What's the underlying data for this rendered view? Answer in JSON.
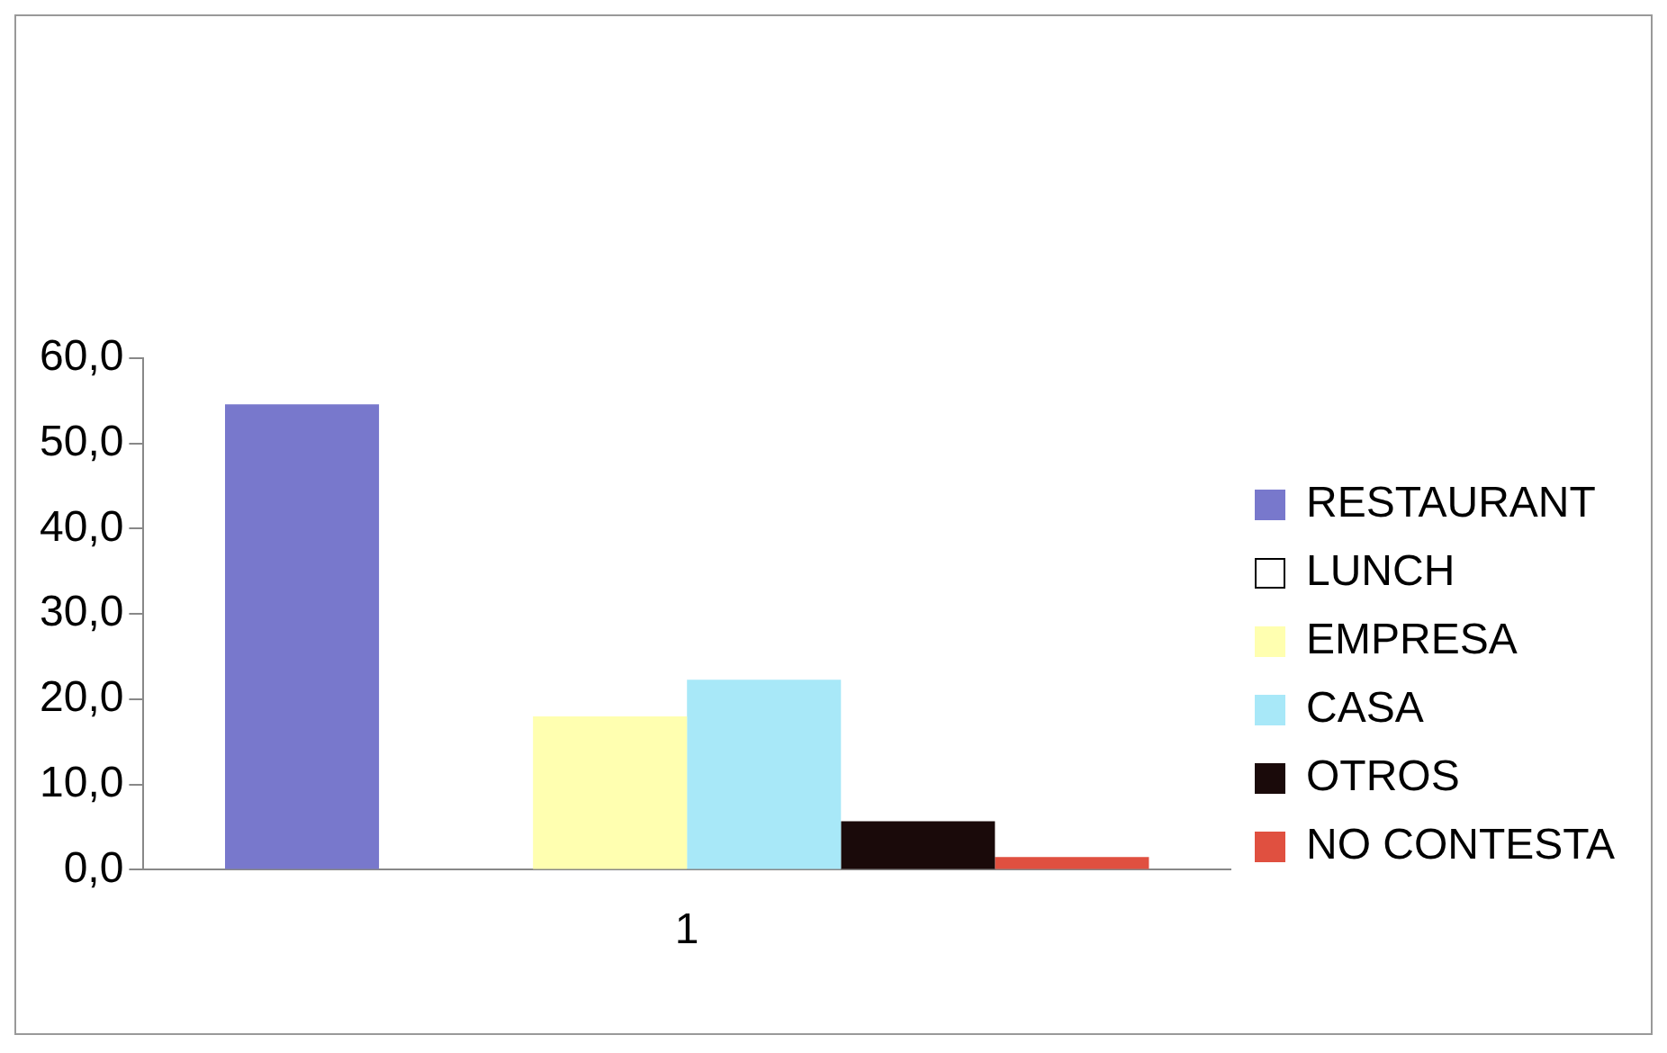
{
  "chart_data": {
    "type": "bar",
    "categories": [
      "1"
    ],
    "series": [
      {
        "name": "RESTAURANT",
        "color": "#7878cc",
        "values": [
          54.6
        ]
      },
      {
        "name": "LUNCH",
        "color": "#ffffff",
        "values": [
          0
        ]
      },
      {
        "name": "EMPRESA",
        "color": "#ffffb0",
        "values": [
          18.0
        ]
      },
      {
        "name": "CASA",
        "color": "#a8e8f8",
        "values": [
          22.3
        ]
      },
      {
        "name": "OTROS",
        "color": "#1a0a0a",
        "values": [
          5.7
        ]
      },
      {
        "name": "NO CONTESTA",
        "color": "#e05040",
        "values": [
          1.5
        ]
      }
    ],
    "ylim": [
      0,
      60
    ],
    "yticks": [
      {
        "value": 0,
        "label": "0,0"
      },
      {
        "value": 10,
        "label": "10,0"
      },
      {
        "value": 20,
        "label": "20,0"
      },
      {
        "value": 30,
        "label": "30,0"
      },
      {
        "value": 40,
        "label": "40,0"
      },
      {
        "value": 50,
        "label": "50,0"
      },
      {
        "value": 60,
        "label": "60,0"
      }
    ],
    "grid": false,
    "legend": "right"
  }
}
